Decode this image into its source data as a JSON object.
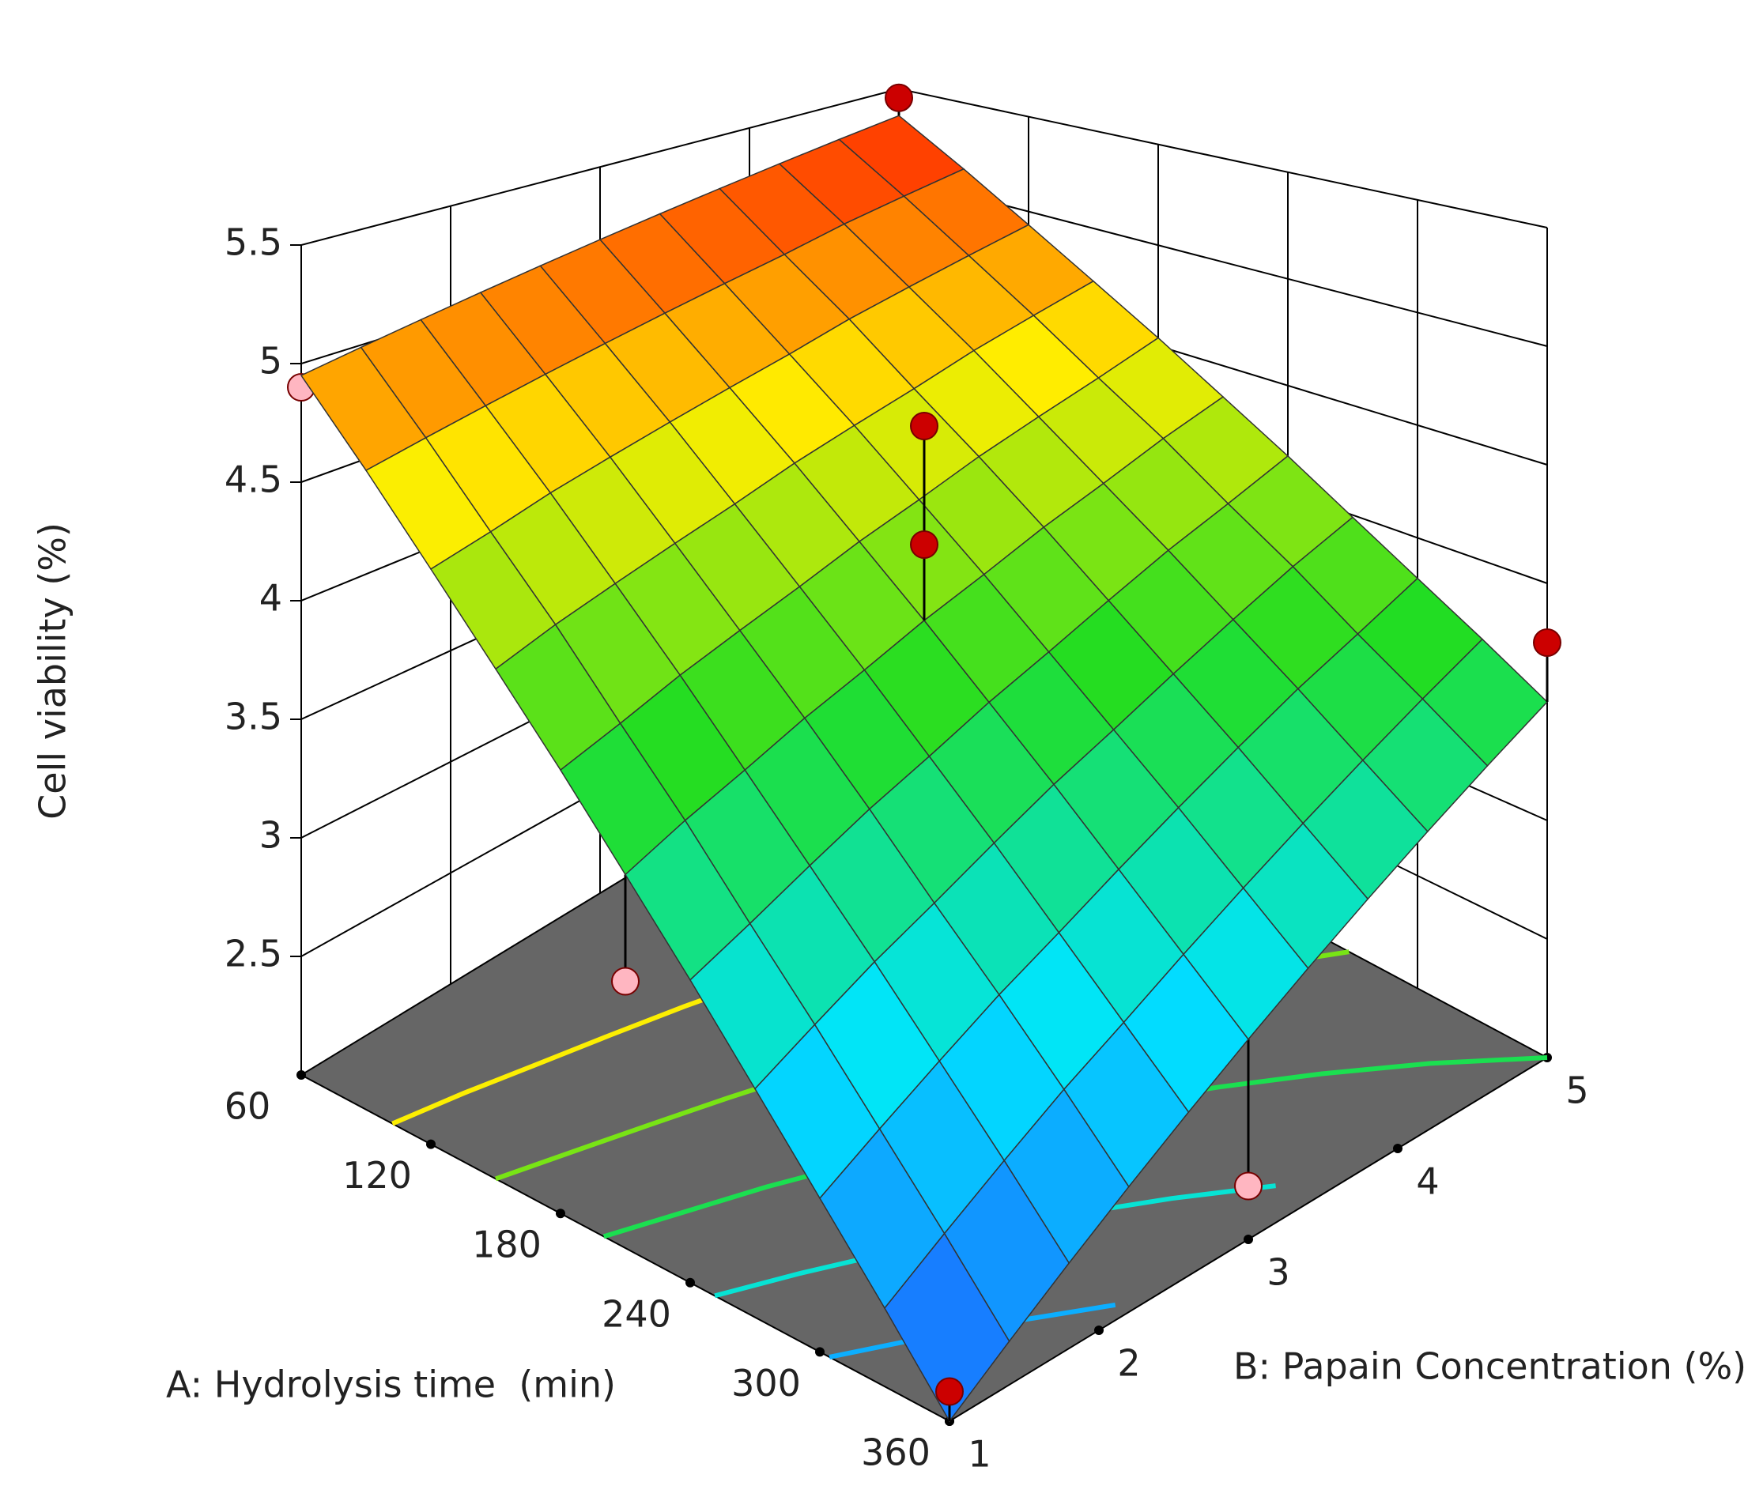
{
  "chart_data": {
    "type": "surface3d",
    "zlabel": "Cell viability (%)",
    "xlabel": "A: Hydrolysis time  (min)",
    "ylabel": "B: Papain Concentration (%)",
    "xlim": [
      60,
      360
    ],
    "xticks": [
      60,
      120,
      180,
      240,
      300,
      360
    ],
    "ylim": [
      1,
      5
    ],
    "yticks": [
      1,
      2,
      3,
      4,
      5
    ],
    "zlim": [
      2,
      5.5
    ],
    "zticks": [
      2.5,
      3,
      3.5,
      4,
      4.5,
      5,
      5.5
    ],
    "x": [
      60,
      90,
      120,
      150,
      180,
      210,
      240,
      270,
      300,
      330,
      360
    ],
    "y": [
      1,
      1.4,
      1.8,
      2.2,
      2.6,
      3,
      3.4,
      3.8,
      4.2,
      4.6,
      5
    ],
    "z": [
      [
        4.95,
        4.99,
        5.03,
        5.07,
        5.11,
        5.15,
        5.19,
        5.23,
        5.27,
        5.31,
        5.35
      ],
      [
        4.63,
        4.68,
        4.73,
        4.78,
        4.83,
        4.88,
        4.93,
        4.98,
        5.04,
        5.09,
        5.14
      ],
      [
        4.31,
        4.37,
        4.44,
        4.5,
        4.56,
        4.62,
        4.68,
        4.75,
        4.81,
        4.87,
        4.93
      ],
      [
        4.0,
        4.08,
        4.15,
        4.22,
        4.29,
        4.37,
        4.44,
        4.51,
        4.59,
        4.66,
        4.73
      ],
      [
        3.7,
        3.78,
        3.87,
        3.95,
        4.03,
        4.12,
        4.2,
        4.29,
        4.37,
        4.45,
        4.54
      ],
      [
        3.4,
        3.5,
        3.59,
        3.69,
        3.78,
        3.88,
        3.97,
        4.07,
        4.16,
        4.26,
        4.35
      ],
      [
        3.11,
        3.21,
        3.32,
        3.43,
        3.53,
        3.64,
        3.74,
        3.85,
        3.96,
        4.06,
        4.17
      ],
      [
        2.82,
        2.94,
        3.06,
        3.17,
        3.29,
        3.41,
        3.52,
        3.64,
        3.76,
        3.88,
        3.99
      ],
      [
        2.54,
        2.67,
        2.8,
        2.93,
        3.05,
        3.18,
        3.31,
        3.44,
        3.57,
        3.69,
        3.82
      ],
      [
        2.27,
        2.41,
        2.55,
        2.69,
        2.82,
        2.96,
        3.1,
        3.24,
        3.38,
        3.52,
        3.66
      ],
      [
        2.0,
        2.15,
        2.3,
        2.45,
        2.6,
        2.75,
        2.9,
        3.05,
        3.2,
        3.35,
        3.5
      ]
    ],
    "contour_levels": [
      2.5,
      3,
      3.5,
      4,
      4.5
    ],
    "points": [
      {
        "x": 60,
        "y": 5,
        "z": 5.45
      },
      {
        "x": 60,
        "y": 1,
        "z": 4.9
      },
      {
        "x": 210,
        "y": 3,
        "z": 4.7
      },
      {
        "x": 210,
        "y": 3,
        "z": 4.2
      },
      {
        "x": 360,
        "y": 5,
        "z": 3.75
      },
      {
        "x": 360,
        "y": 1,
        "z": 2.1
      },
      {
        "x": 210,
        "y": 1,
        "z": 3.0
      },
      {
        "x": 360,
        "y": 3,
        "z": 2.2
      }
    ],
    "floor_color": "#666666"
  }
}
